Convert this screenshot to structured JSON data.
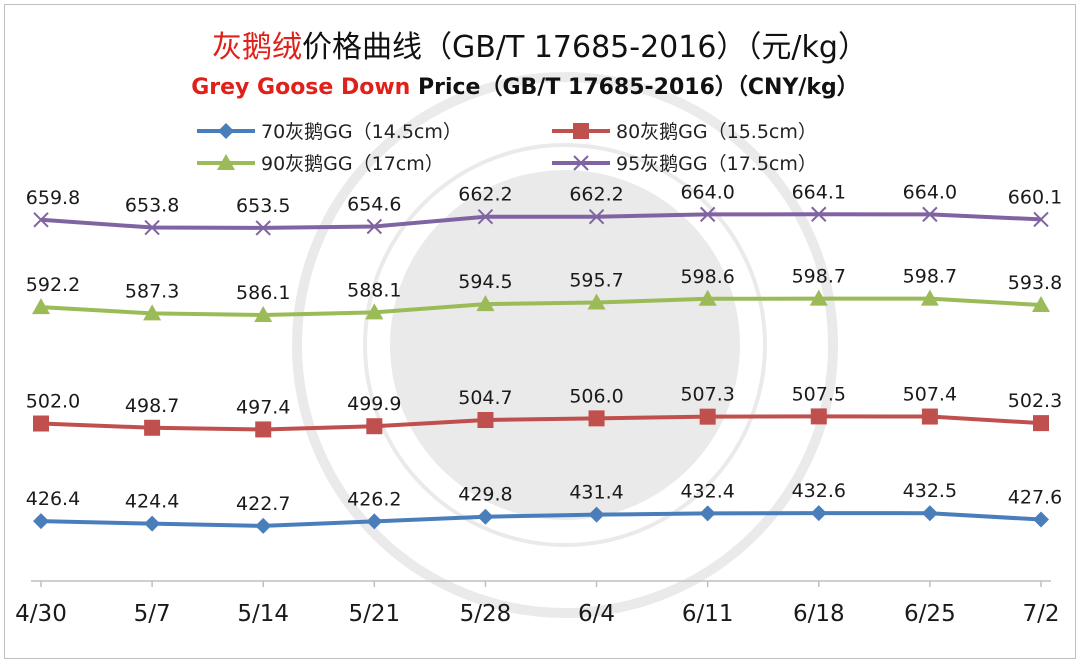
{
  "chart_data": {
    "type": "line",
    "title_parts": [
      {
        "text": "灰鹅绒",
        "color": "#e0201b"
      },
      {
        "text": "价格曲线（GB/T 17685-2016）（元/kg）",
        "color": "#111111"
      }
    ],
    "subtitle_parts": [
      {
        "text": "Grey Goose Down",
        "color": "#e0201b"
      },
      {
        "text": " Price（GB/T 17685-2016）（CNY/kg）",
        "color": "#111111"
      }
    ],
    "categories": [
      "4/30",
      "5/7",
      "5/14",
      "5/21",
      "5/28",
      "6/4",
      "6/11",
      "6/18",
      "6/25",
      "7/2"
    ],
    "series": [
      {
        "name": "70灰鹅GG（14.5cm）",
        "color": "#4a7ebb",
        "marker": "diamond",
        "values": [
          426.4,
          424.4,
          422.7,
          426.2,
          429.8,
          431.4,
          432.4,
          432.6,
          432.5,
          427.6
        ],
        "labels": [
          "426.4",
          "424.4",
          "422.7",
          "426.2",
          "429.8",
          "431.4",
          "432.4",
          "432.6",
          "432.5",
          "427.6"
        ]
      },
      {
        "name": "80灰鹅GG（15.5cm）",
        "color": "#c0504d",
        "marker": "square",
        "values": [
          502.0,
          498.7,
          497.4,
          499.9,
          504.7,
          506.0,
          507.3,
          507.5,
          507.4,
          502.3
        ],
        "labels": [
          "502.0",
          "498.7",
          "497.4",
          "499.9",
          "504.7",
          "506.0",
          "507.3",
          "507.5",
          "507.4",
          "502.3"
        ]
      },
      {
        "name": "90灰鹅GG（17cm）",
        "color": "#9bbb59",
        "marker": "triangle",
        "values": [
          592.2,
          587.3,
          586.1,
          588.1,
          594.5,
          595.7,
          598.6,
          598.7,
          598.7,
          593.8
        ],
        "labels": [
          "592.2",
          "587.3",
          "586.1",
          "588.1",
          "594.5",
          "595.7",
          "598.6",
          "598.7",
          "598.7",
          "593.8"
        ]
      },
      {
        "name": "95灰鹅GG（17.5cm）",
        "color": "#8064a2",
        "marker": "x",
        "values": [
          659.8,
          653.8,
          653.5,
          654.6,
          662.2,
          662.2,
          664.0,
          664.1,
          664.0,
          660.1
        ],
        "labels": [
          "659.8",
          "653.8",
          "653.5",
          "654.6",
          "662.2",
          "662.2",
          "664.0",
          "664.1",
          "664.0",
          "660.1"
        ]
      }
    ],
    "ylim": [
      380,
      710
    ],
    "grid": false,
    "legend_position": "top",
    "axis_color": "#bfbfbf"
  }
}
